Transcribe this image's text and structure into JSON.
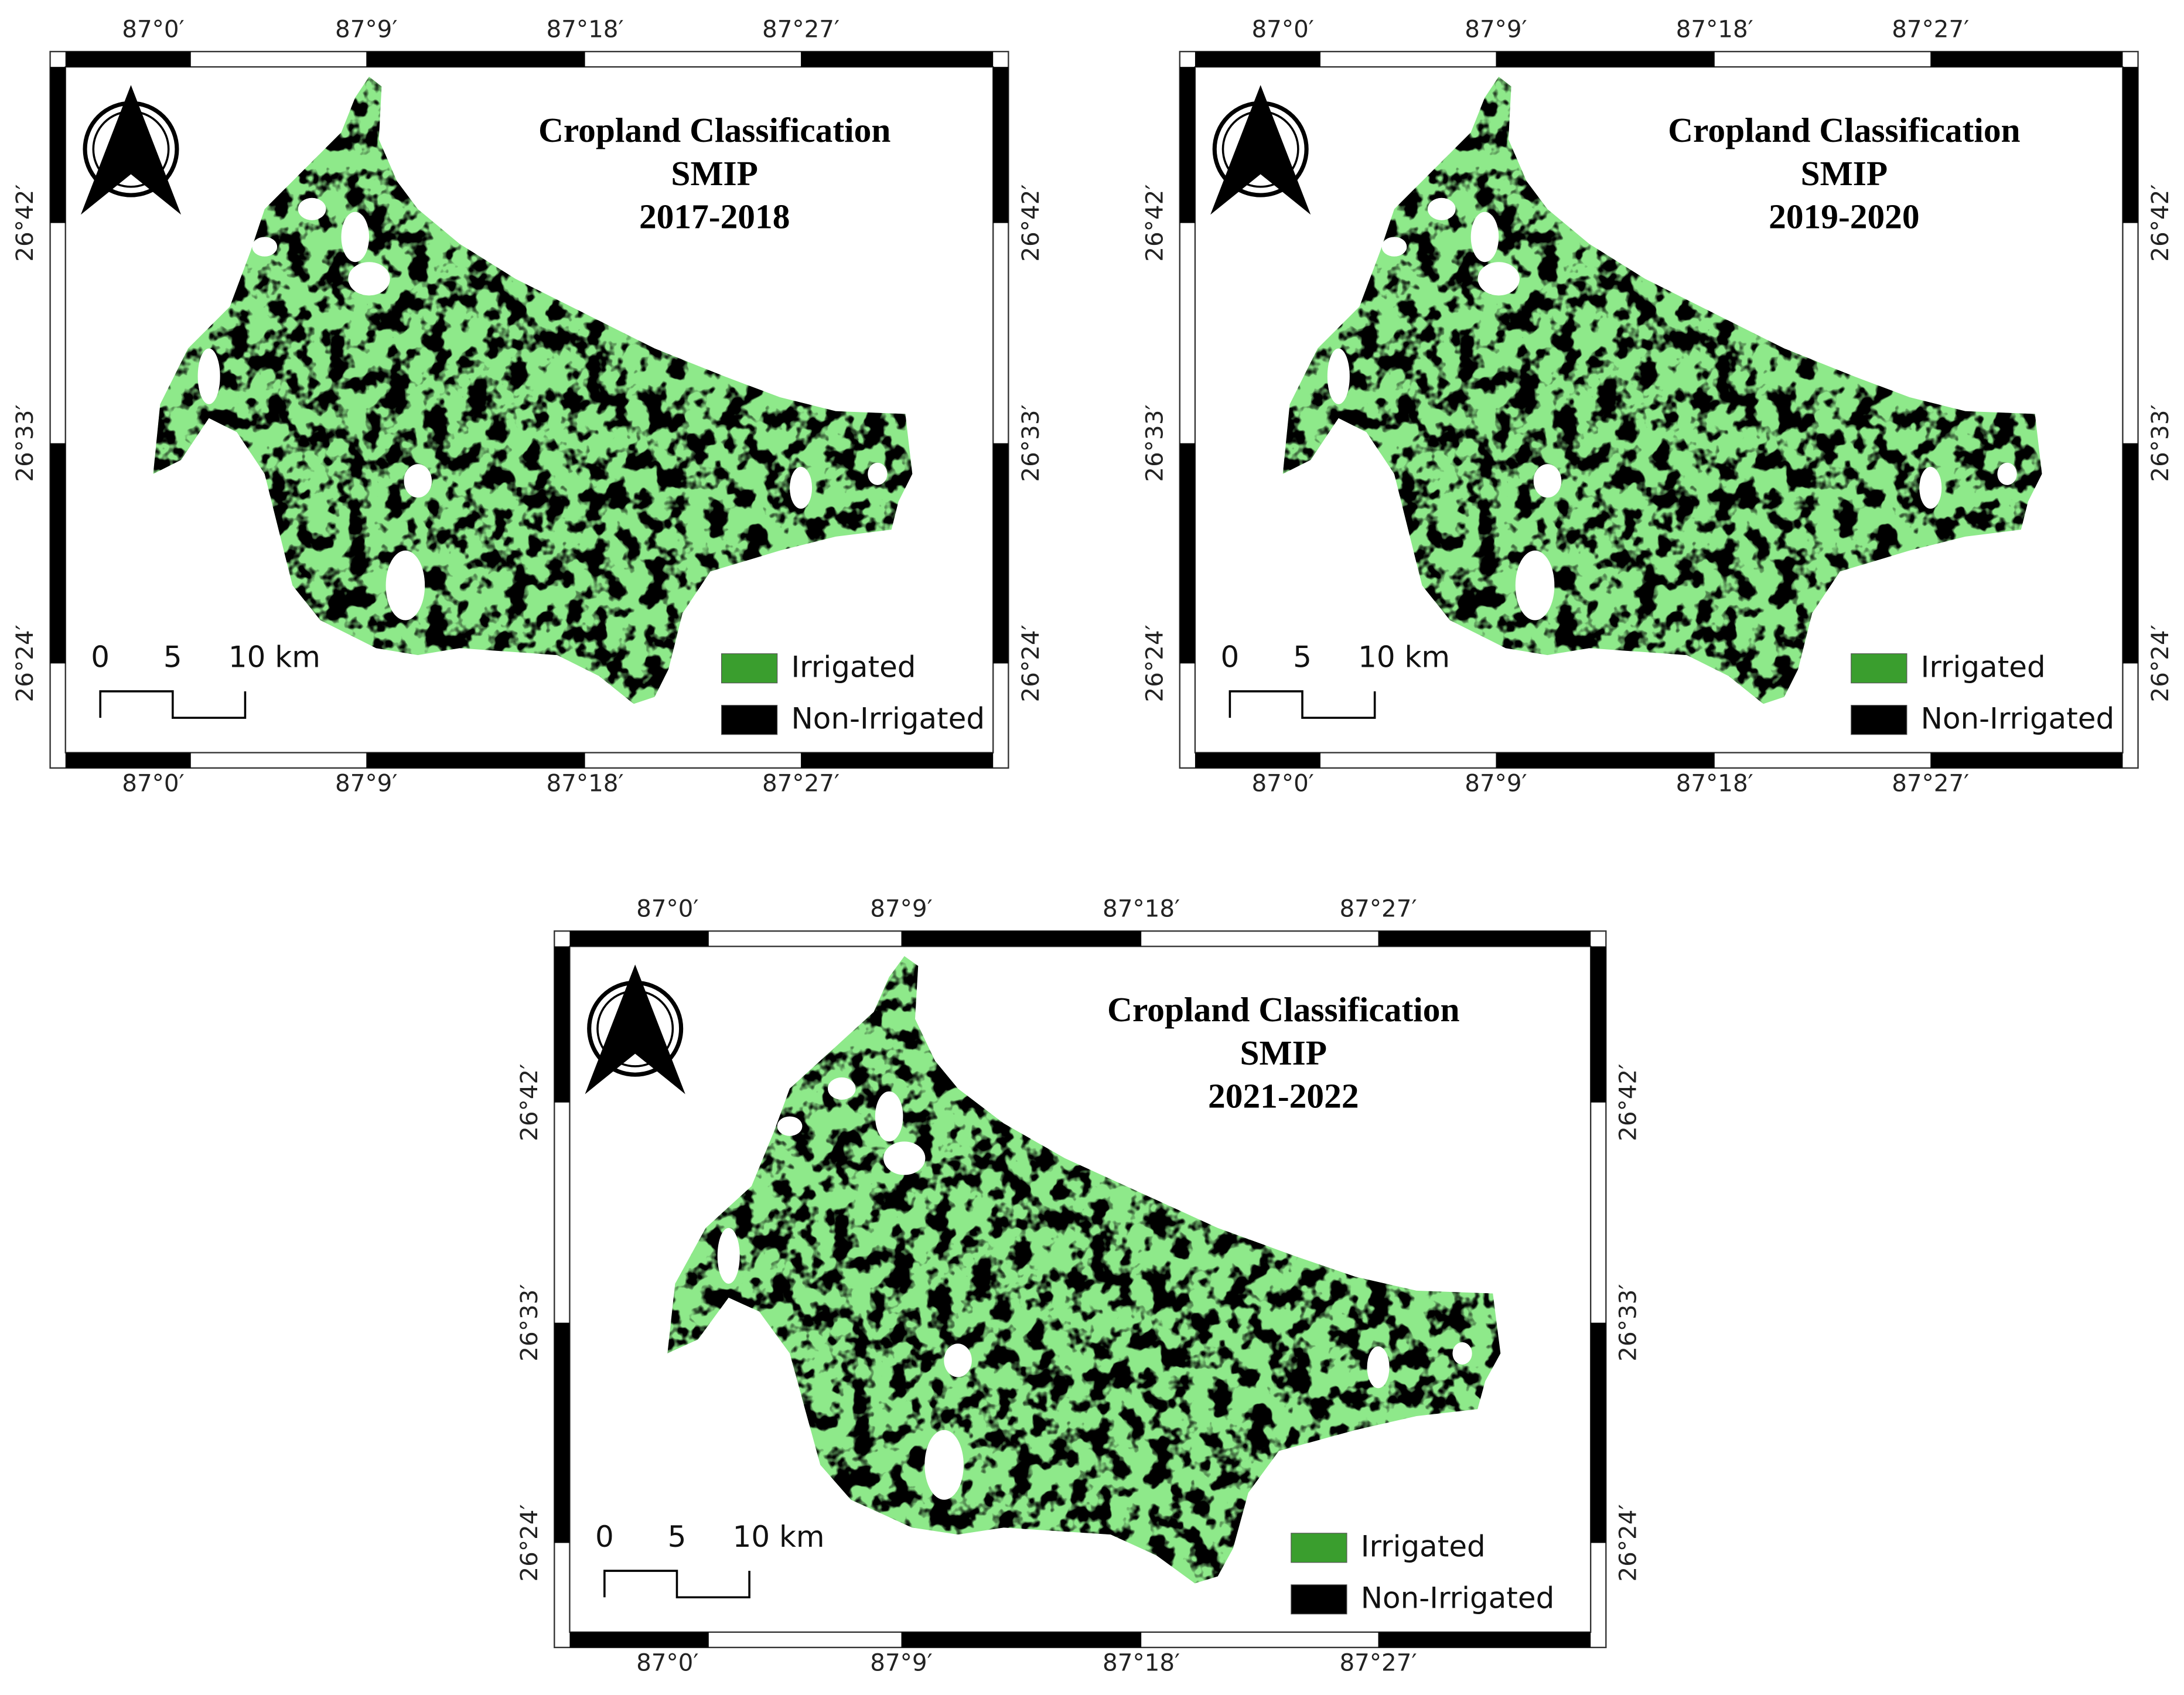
{
  "maps": [
    {
      "title": [
        "Cropland Classification",
        "SMIP",
        "2017-2018"
      ]
    },
    {
      "title": [
        "Cropland Classification",
        "SMIP",
        "2019-2020"
      ]
    },
    {
      "title": [
        "Cropland Classification",
        "SMIP",
        "2021-2022"
      ]
    }
  ],
  "longitude_labels": [
    "87°0′",
    "87°9′",
    "87°18′",
    "87°27′"
  ],
  "latitude_labels": [
    "26°42′",
    "26°33′",
    "26°24′"
  ],
  "scale_bar": [
    "0",
    "5",
    "10 km"
  ],
  "legend": [
    {
      "label": "Irrigated",
      "color": "#3a9e2e"
    },
    {
      "label": "Non-Irrigated",
      "color": "#000000"
    }
  ]
}
